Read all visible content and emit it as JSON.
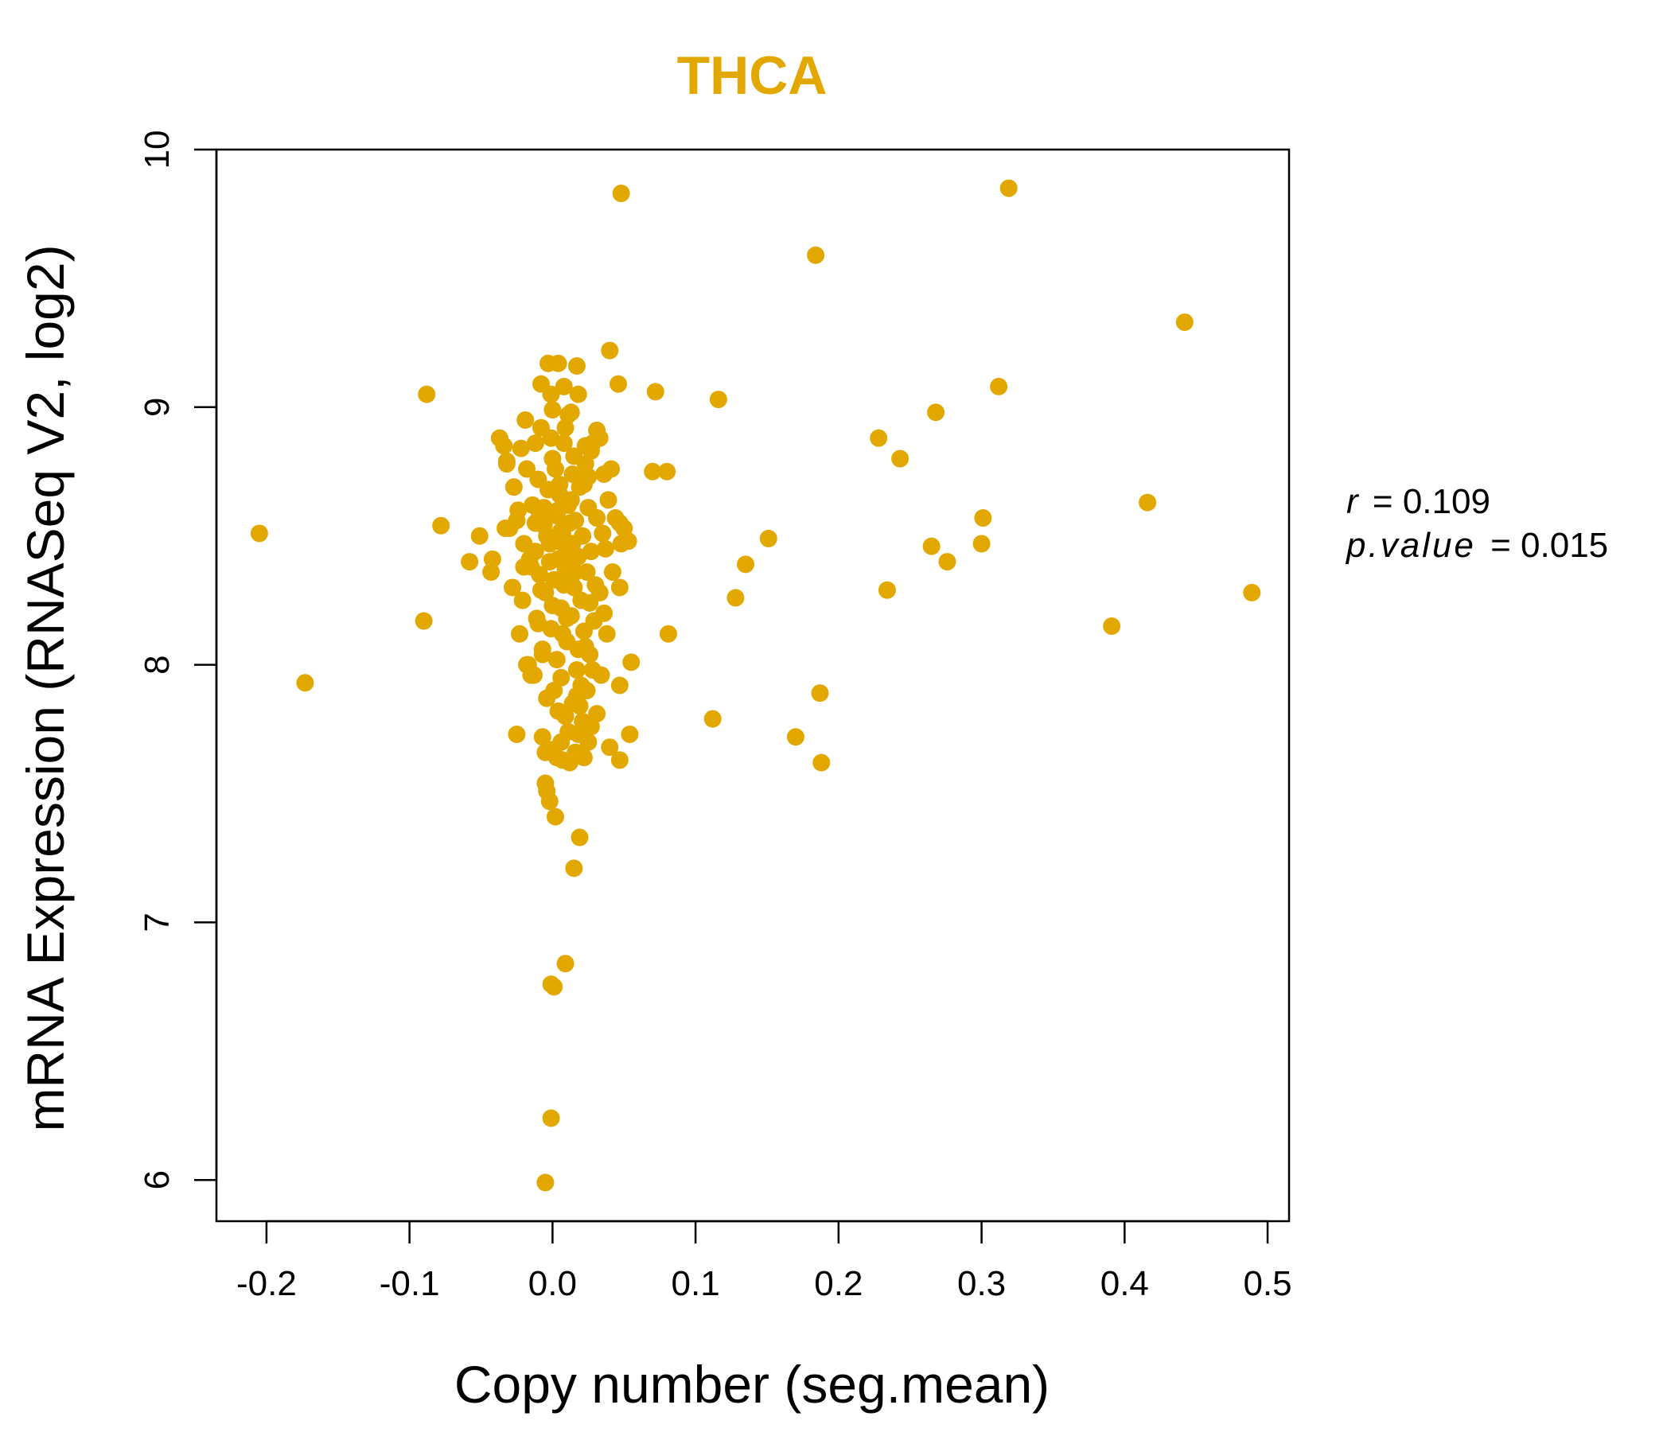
{
  "chart_data": {
    "type": "scatter",
    "title": "THCA",
    "xlabel": "Copy number (seg.mean)",
    "ylabel": "mRNA Expression (RNASeq V2, log2)",
    "xlim": [
      -0.235,
      0.515
    ],
    "ylim": [
      5.84,
      10.0
    ],
    "xticks": [
      {
        "value": -0.2,
        "label": "-0.2"
      },
      {
        "value": -0.1,
        "label": "-0.1"
      },
      {
        "value": 0.0,
        "label": "0.0"
      },
      {
        "value": 0.1,
        "label": "0.1"
      },
      {
        "value": 0.2,
        "label": "0.2"
      },
      {
        "value": 0.3,
        "label": "0.3"
      },
      {
        "value": 0.4,
        "label": "0.4"
      },
      {
        "value": 0.5,
        "label": "0.5"
      }
    ],
    "yticks": [
      {
        "value": 6,
        "label": "6"
      },
      {
        "value": 7,
        "label": "7"
      },
      {
        "value": 8,
        "label": "8"
      },
      {
        "value": 9,
        "label": "9"
      },
      {
        "value": 10,
        "label": "10"
      }
    ],
    "grid": false,
    "legend": "none",
    "color": "#E3A800",
    "annotations": {
      "r_label": "r",
      "r_value": "0.109",
      "p_label": "p.value",
      "p_value": "0.015"
    },
    "points": [
      [
        0.048,
        9.83
      ],
      [
        0.319,
        9.85
      ],
      [
        0.184,
        9.59
      ],
      [
        0.442,
        9.33
      ],
      [
        0.04,
        9.22
      ],
      [
        0.312,
        9.08
      ],
      [
        -0.088,
        9.05
      ],
      [
        0.116,
        9.03
      ],
      [
        0.072,
        9.06
      ],
      [
        0.046,
        9.09
      ],
      [
        0.268,
        8.98
      ],
      [
        0.228,
        8.88
      ],
      [
        0.243,
        8.8
      ],
      [
        0.07,
        8.75
      ],
      [
        0.08,
        8.75
      ],
      [
        -0.205,
        8.51
      ],
      [
        -0.078,
        8.54
      ],
      [
        0.151,
        8.49
      ],
      [
        0.301,
        8.57
      ],
      [
        0.3,
        8.47
      ],
      [
        0.416,
        8.63
      ],
      [
        0.265,
        8.46
      ],
      [
        0.276,
        8.4
      ],
      [
        0.135,
        8.39
      ],
      [
        0.128,
        8.26
      ],
      [
        0.234,
        8.29
      ],
      [
        0.489,
        8.28
      ],
      [
        -0.09,
        8.17
      ],
      [
        -0.173,
        7.93
      ],
      [
        0.081,
        8.12
      ],
      [
        0.391,
        8.15
      ],
      [
        0.055,
        8.01
      ],
      [
        0.047,
        7.92
      ],
      [
        0.112,
        7.79
      ],
      [
        0.187,
        7.89
      ],
      [
        0.17,
        7.72
      ],
      [
        0.188,
        7.62
      ],
      [
        0.054,
        7.73
      ],
      [
        0.047,
        7.63
      ],
      [
        0.04,
        7.68
      ],
      [
        -0.051,
        8.5
      ],
      [
        -0.058,
        8.4
      ],
      [
        -0.042,
        8.41
      ],
      [
        -0.043,
        8.36
      ],
      [
        -0.034,
        8.85
      ],
      [
        -0.032,
        8.78
      ],
      [
        -0.033,
        8.53
      ],
      [
        -0.027,
        8.69
      ],
      [
        -0.025,
        8.56
      ],
      [
        -0.023,
        8.12
      ],
      [
        -0.02,
        8.38
      ],
      [
        -0.021,
        8.25
      ],
      [
        -0.019,
        8.95
      ],
      [
        -0.018,
        8.76
      ],
      [
        -0.017,
        8.0
      ],
      [
        -0.015,
        7.96
      ],
      [
        -0.014,
        8.62
      ],
      [
        -0.012,
        8.44
      ],
      [
        -0.011,
        8.18
      ],
      [
        -0.01,
        8.72
      ],
      [
        -0.009,
        8.35
      ],
      [
        -0.008,
        8.92
      ],
      [
        -0.007,
        8.06
      ],
      [
        -0.006,
        8.54
      ],
      [
        -0.005,
        8.28
      ],
      [
        -0.004,
        7.87
      ],
      [
        -0.003,
        8.68
      ],
      [
        -0.002,
        8.47
      ],
      [
        -0.001,
        8.14
      ],
      [
        0.0,
        8.8
      ],
      [
        0.001,
        8.33
      ],
      [
        0.002,
        8.58
      ],
      [
        0.003,
        8.02
      ],
      [
        0.004,
        8.41
      ],
      [
        0.005,
        8.66
      ],
      [
        0.006,
        8.22
      ],
      [
        0.007,
        8.51
      ],
      [
        0.008,
        8.86
      ],
      [
        0.009,
        8.37
      ],
      [
        0.01,
        8.09
      ],
      [
        0.011,
        8.62
      ],
      [
        0.012,
        8.45
      ],
      [
        0.013,
        8.19
      ],
      [
        0.014,
        8.74
      ],
      [
        0.015,
        8.3
      ],
      [
        0.016,
        8.56
      ],
      [
        0.017,
        7.98
      ],
      [
        0.018,
        8.42
      ],
      [
        0.019,
        8.69
      ],
      [
        0.02,
        8.25
      ],
      [
        0.021,
        8.5
      ],
      [
        0.022,
        8.13
      ],
      [
        0.023,
        8.78
      ],
      [
        0.024,
        8.36
      ],
      [
        0.025,
        8.61
      ],
      [
        0.026,
        8.04
      ],
      [
        0.027,
        8.44
      ],
      [
        0.028,
        8.86
      ],
      [
        0.03,
        8.31
      ],
      [
        0.031,
        8.57
      ],
      [
        -0.004,
        8.5
      ],
      [
        0.003,
        8.48
      ],
      [
        0.006,
        8.52
      ],
      [
        0.009,
        8.43
      ],
      [
        0.012,
        8.55
      ],
      [
        -0.002,
        8.4
      ],
      [
        0.004,
        8.6
      ],
      [
        0.008,
        8.31
      ],
      [
        0.011,
        8.39
      ],
      [
        0.014,
        8.47
      ],
      [
        -0.006,
        8.61
      ],
      [
        0.0,
        8.23
      ],
      [
        0.005,
        8.7
      ],
      [
        0.01,
        8.18
      ],
      [
        0.016,
        8.36
      ],
      [
        -0.008,
        8.29
      ],
      [
        0.002,
        8.76
      ],
      [
        0.007,
        8.12
      ],
      [
        0.013,
        8.64
      ],
      [
        0.018,
        8.06
      ],
      [
        -0.01,
        8.16
      ],
      [
        -0.001,
        8.88
      ],
      [
        0.006,
        7.95
      ],
      [
        0.015,
        8.81
      ],
      [
        0.02,
        7.92
      ],
      [
        -0.012,
        8.55
      ],
      [
        0.001,
        7.9
      ],
      [
        0.009,
        8.92
      ],
      [
        0.017,
        7.88
      ],
      [
        0.022,
        8.7
      ],
      [
        -0.015,
        8.38
      ],
      [
        0.004,
        7.82
      ],
      [
        0.011,
        8.97
      ],
      [
        0.019,
        7.84
      ],
      [
        0.026,
        8.24
      ],
      [
        -0.003,
        9.17
      ],
      [
        0.004,
        9.17
      ],
      [
        0.017,
        9.16
      ],
      [
        -0.008,
        9.09
      ],
      [
        0.008,
        9.08
      ],
      [
        0.018,
        9.05
      ],
      [
        -0.001,
        9.05
      ],
      [
        0.013,
        8.98
      ],
      [
        0.0,
        8.99
      ],
      [
        0.031,
        8.91
      ],
      [
        0.033,
        8.88
      ],
      [
        0.023,
        8.85
      ],
      [
        0.036,
        8.74
      ],
      [
        0.041,
        8.76
      ],
      [
        0.027,
        8.83
      ],
      [
        -0.037,
        8.88
      ],
      [
        -0.032,
        8.79
      ],
      [
        -0.022,
        8.84
      ],
      [
        -0.012,
        8.86
      ],
      [
        0.025,
        8.73
      ],
      [
        0.039,
        8.64
      ],
      [
        0.044,
        8.57
      ],
      [
        0.047,
        8.55
      ],
      [
        0.05,
        8.53
      ],
      [
        0.053,
        8.48
      ],
      [
        0.048,
        8.47
      ],
      [
        0.037,
        8.45
      ],
      [
        0.035,
        8.51
      ],
      [
        0.042,
        8.36
      ],
      [
        0.047,
        8.3
      ],
      [
        0.033,
        8.28
      ],
      [
        0.036,
        8.2
      ],
      [
        0.029,
        8.17
      ],
      [
        0.038,
        8.12
      ],
      [
        0.023,
        8.07
      ],
      [
        0.034,
        7.96
      ],
      [
        0.028,
        7.98
      ],
      [
        0.024,
        7.9
      ],
      [
        0.031,
        7.81
      ],
      [
        0.021,
        7.78
      ],
      [
        0.027,
        7.76
      ],
      [
        0.018,
        7.73
      ],
      [
        0.025,
        7.7
      ],
      [
        0.011,
        7.74
      ],
      [
        0.016,
        7.66
      ],
      [
        0.022,
        7.64
      ],
      [
        0.007,
        7.63
      ],
      [
        0.003,
        7.64
      ],
      [
        -0.001,
        7.67
      ],
      [
        0.012,
        7.62
      ],
      [
        -0.007,
        7.72
      ],
      [
        -0.005,
        7.66
      ],
      [
        0.006,
        7.7
      ],
      [
        0.009,
        7.8
      ],
      [
        0.014,
        7.85
      ],
      [
        -0.025,
        7.73
      ],
      [
        -0.013,
        7.96
      ],
      [
        -0.018,
        8.0
      ],
      [
        -0.007,
        8.04
      ],
      [
        -0.028,
        8.3
      ],
      [
        -0.03,
        8.53
      ],
      [
        -0.024,
        8.6
      ],
      [
        -0.02,
        8.47
      ],
      [
        -0.016,
        8.41
      ],
      [
        -0.009,
        8.58
      ],
      [
        -0.005,
        7.54
      ],
      [
        -0.004,
        7.51
      ],
      [
        -0.002,
        7.47
      ],
      [
        0.002,
        7.41
      ],
      [
        0.019,
        7.33
      ],
      [
        0.015,
        7.21
      ],
      [
        0.009,
        6.84
      ],
      [
        -0.001,
        6.76
      ],
      [
        0.001,
        6.75
      ],
      [
        -0.001,
        6.24
      ],
      [
        -0.005,
        5.99
      ]
    ]
  }
}
